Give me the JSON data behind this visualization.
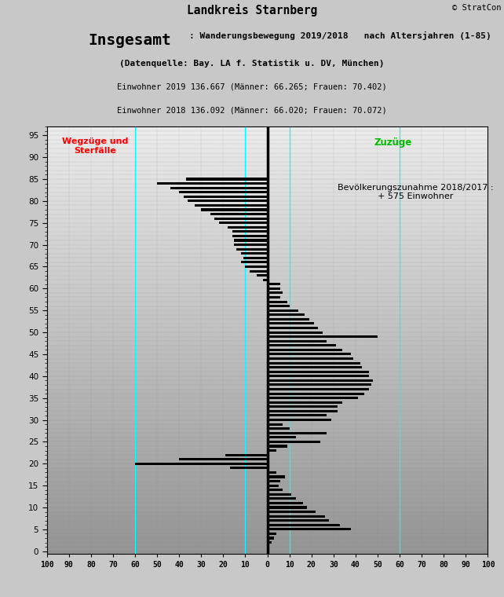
{
  "title_main": "Landkreis Starnberg",
  "title_line2a": "Insgesamt",
  "title_line2b": ": Wanderungsbewegung 2019/2018   nach Altersjahren (1-85)",
  "title_line3": "(Datenquelle: Bay. LA f. Statistik u. DV, München)",
  "title_line4": "Einwohner 2019 136.667 (Männer: 66.265; Frauen: 70.402)",
  "title_line5": "Einwohner 2018 136.092 (Männer: 66.020; Frauen: 70.072)",
  "copyright": "© StratCon",
  "label_left": "Wegzüge und\nSterfälle",
  "label_right": "Zuzüge",
  "annotation": "Bevölkerungszunahme 2018/2017 :\n+ 575 Einwohner",
  "xlim": [
    -100,
    100
  ],
  "ylim": [
    -0.5,
    97
  ],
  "background_color": "#c0c0c0",
  "bar_color": "#000000",
  "vline_color": "#000000",
  "cyan_lines": [
    -60,
    -10,
    10,
    60
  ],
  "cyan_color": "#00ffff",
  "ages": [
    1,
    2,
    3,
    4,
    5,
    6,
    7,
    8,
    9,
    10,
    11,
    12,
    13,
    14,
    15,
    16,
    17,
    18,
    19,
    20,
    21,
    22,
    23,
    24,
    25,
    26,
    27,
    28,
    29,
    30,
    31,
    32,
    33,
    34,
    35,
    36,
    37,
    38,
    39,
    40,
    41,
    42,
    43,
    44,
    45,
    46,
    47,
    48,
    49,
    50,
    51,
    52,
    53,
    54,
    55,
    56,
    57,
    58,
    59,
    60,
    61,
    62,
    63,
    64,
    65,
    66,
    67,
    68,
    69,
    70,
    71,
    72,
    73,
    74,
    75,
    76,
    77,
    78,
    79,
    80,
    81,
    82,
    83,
    84,
    85
  ],
  "net": [
    1,
    2,
    3,
    4,
    38,
    33,
    28,
    26,
    22,
    18,
    16,
    13,
    11,
    7,
    5,
    6,
    8,
    4,
    -17,
    -60,
    -40,
    -19,
    4,
    9,
    24,
    13,
    27,
    10,
    7,
    29,
    27,
    32,
    32,
    34,
    41,
    44,
    46,
    47,
    48,
    46,
    46,
    43,
    42,
    39,
    38,
    34,
    31,
    27,
    50,
    25,
    23,
    21,
    19,
    17,
    14,
    10,
    9,
    6,
    7,
    6,
    6,
    -2,
    -5,
    -8,
    -10,
    -12,
    -11,
    -12,
    -14,
    -15,
    -15,
    -16,
    -16,
    -18,
    -22,
    -24,
    -26,
    -30,
    -33,
    -36,
    -38,
    -40,
    -44,
    -50,
    -37
  ]
}
